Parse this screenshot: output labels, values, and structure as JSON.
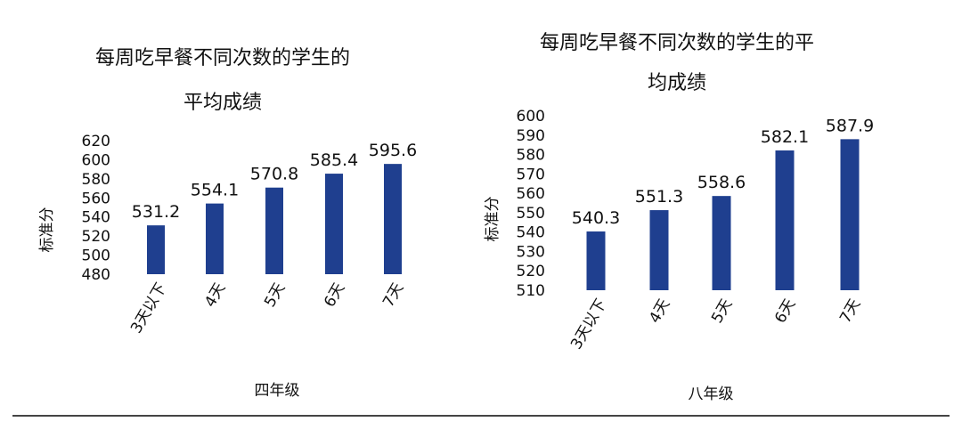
{
  "colors": {
    "bar": "#1f3f8f",
    "rule": "#444444"
  },
  "chart_data": [
    {
      "type": "bar",
      "title_lines": [
        "每周吃早餐不同次数的学生的",
        "平均成绩"
      ],
      "xlabel": "四年级",
      "ylabel": "标准分",
      "categories": [
        "3天以下",
        "4天",
        "5天",
        "6天",
        "7天"
      ],
      "values": [
        531.2,
        554.1,
        570.8,
        585.4,
        595.6
      ],
      "data_labels": [
        "531.2",
        "554.1",
        "570.8",
        "585.4",
        "595.6"
      ],
      "ylim": [
        480,
        620
      ],
      "yticks": [
        480,
        500,
        520,
        540,
        560,
        580,
        600,
        620
      ],
      "grid": false,
      "legend": "none"
    },
    {
      "type": "bar",
      "title_lines": [
        "每周吃早餐不同次数的学生的平",
        "均成绩"
      ],
      "xlabel": "八年级",
      "ylabel": "标准分",
      "categories": [
        "3天以下",
        "4天",
        "5天",
        "6天",
        "7天"
      ],
      "values": [
        540.3,
        551.3,
        558.6,
        582.1,
        587.9
      ],
      "data_labels": [
        "540.3",
        "551.3",
        "558.6",
        "582.1",
        "587.9"
      ],
      "ylim": [
        510,
        600
      ],
      "yticks": [
        510,
        520,
        530,
        540,
        550,
        560,
        570,
        580,
        590,
        600
      ],
      "grid": false,
      "legend": "none"
    }
  ]
}
